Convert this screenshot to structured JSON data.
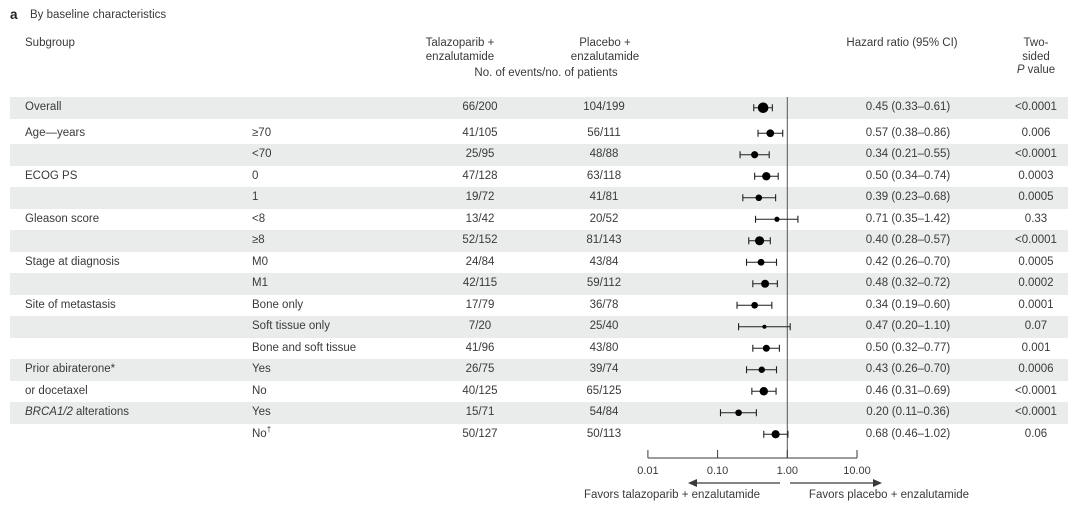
{
  "panel": {
    "label": "a",
    "title": "By baseline characteristics"
  },
  "header": {
    "subgroup": "Subgroup",
    "arm1": [
      "Talazoparib +",
      "enzalutamide"
    ],
    "arm2": [
      "Placebo +",
      "enzalutamide"
    ],
    "events": "No. of events/no. of patients",
    "hazard": "Hazard ratio (95% CI)",
    "p_line1": "Two-sided",
    "p_italic": "P",
    "p_rest": " value"
  },
  "colors": {
    "band": "#eaebeb",
    "text": "#3a3a3a",
    "marker": "#000000",
    "ref_line": "#555555",
    "axis": "#3a3a3a"
  },
  "chart_data": {
    "type": "forest",
    "title": "By baseline characteristics",
    "x_axis": {
      "scale": "log10",
      "tick_values": [
        0.01,
        0.1,
        1,
        10
      ],
      "tick_labels": [
        "0.01",
        "0.10",
        "1.00",
        "10.00"
      ],
      "ref_line": 1.0,
      "range": [
        0.01,
        10
      ]
    },
    "footer": {
      "left": "Favors talazoparib + enzalutamide",
      "right": "Favors placebo + enzalutamide"
    },
    "rows": [
      {
        "group": "Overall",
        "level": "",
        "events_t": "66/200",
        "events_p": "104/199",
        "hr": 0.45,
        "lo": 0.33,
        "hi": 0.61,
        "hr_text": "0.45 (0.33–0.61)",
        "pval": "<0.0001"
      },
      {
        "group": "Age—years",
        "level": "≥70",
        "events_t": "41/105",
        "events_p": "56/111",
        "hr": 0.57,
        "lo": 0.38,
        "hi": 0.86,
        "hr_text": "0.57 (0.38–0.86)",
        "pval": "0.006"
      },
      {
        "group": "",
        "level": "<70",
        "events_t": "25/95",
        "events_p": "48/88",
        "hr": 0.34,
        "lo": 0.21,
        "hi": 0.55,
        "hr_text": "0.34 (0.21–0.55)",
        "pval": "<0.0001"
      },
      {
        "group": "ECOG PS",
        "level": "0",
        "events_t": "47/128",
        "events_p": "63/118",
        "hr": 0.5,
        "lo": 0.34,
        "hi": 0.74,
        "hr_text": "0.50 (0.34–0.74)",
        "pval": "0.0003"
      },
      {
        "group": "",
        "level": "1",
        "events_t": "19/72",
        "events_p": "41/81",
        "hr": 0.39,
        "lo": 0.23,
        "hi": 0.68,
        "hr_text": "0.39 (0.23–0.68)",
        "pval": "0.0005"
      },
      {
        "group": "Gleason score",
        "level": "<8",
        "events_t": "13/42",
        "events_p": "20/52",
        "hr": 0.71,
        "lo": 0.35,
        "hi": 1.42,
        "hr_text": "0.71 (0.35–1.42)",
        "pval": "0.33"
      },
      {
        "group": "",
        "level": "≥8",
        "events_t": "52/152",
        "events_p": "81/143",
        "hr": 0.4,
        "lo": 0.28,
        "hi": 0.57,
        "hr_text": "0.40 (0.28–0.57)",
        "pval": "<0.0001"
      },
      {
        "group": "Stage at diagnosis",
        "level": "M0",
        "events_t": "24/84",
        "events_p": "43/84",
        "hr": 0.42,
        "lo": 0.26,
        "hi": 0.7,
        "hr_text": "0.42 (0.26–0.70)",
        "pval": "0.0005"
      },
      {
        "group": "",
        "level": "M1",
        "events_t": "42/115",
        "events_p": "59/112",
        "hr": 0.48,
        "lo": 0.32,
        "hi": 0.72,
        "hr_text": "0.48 (0.32–0.72)",
        "pval": "0.0002"
      },
      {
        "group": "Site of metastasis",
        "level": "Bone only",
        "events_t": "17/79",
        "events_p": "36/78",
        "hr": 0.34,
        "lo": 0.19,
        "hi": 0.6,
        "hr_text": "0.34 (0.19–0.60)",
        "pval": "0.0001"
      },
      {
        "group": "",
        "level": "Soft tissue only",
        "events_t": "7/20",
        "events_p": "25/40",
        "hr": 0.47,
        "lo": 0.2,
        "hi": 1.1,
        "hr_text": "0.47 (0.20–1.10)",
        "pval": "0.07"
      },
      {
        "group": "",
        "level": "Bone and soft tissue",
        "events_t": "41/96",
        "events_p": "43/80",
        "hr": 0.5,
        "lo": 0.32,
        "hi": 0.77,
        "hr_text": "0.50 (0.32–0.77)",
        "pval": "0.001"
      },
      {
        "group": "Prior abiraterone*",
        "level": "Yes",
        "events_t": "26/75",
        "events_p": "39/74",
        "hr": 0.43,
        "lo": 0.26,
        "hi": 0.7,
        "hr_text": "0.43 (0.26–0.70)",
        "pval": "0.0006"
      },
      {
        "group": "or docetaxel",
        "level": "No",
        "events_t": "40/125",
        "events_p": "65/125",
        "hr": 0.46,
        "lo": 0.31,
        "hi": 0.69,
        "hr_text": "0.46 (0.31–0.69)",
        "pval": "<0.0001"
      },
      {
        "group_italic": "BRCA1/2",
        "group": "alterations",
        "level": "Yes",
        "events_t": "15/71",
        "events_p": "54/84",
        "hr": 0.2,
        "lo": 0.11,
        "hi": 0.36,
        "hr_text": "0.20 (0.11–0.36)",
        "pval": "<0.0001"
      },
      {
        "group": "",
        "level": "No",
        "level_sup": "†",
        "events_t": "50/127",
        "events_p": "50/113",
        "hr": 0.68,
        "lo": 0.46,
        "hi": 1.02,
        "hr_text": "0.68 (0.46–1.02)",
        "pval": "0.06"
      }
    ]
  }
}
